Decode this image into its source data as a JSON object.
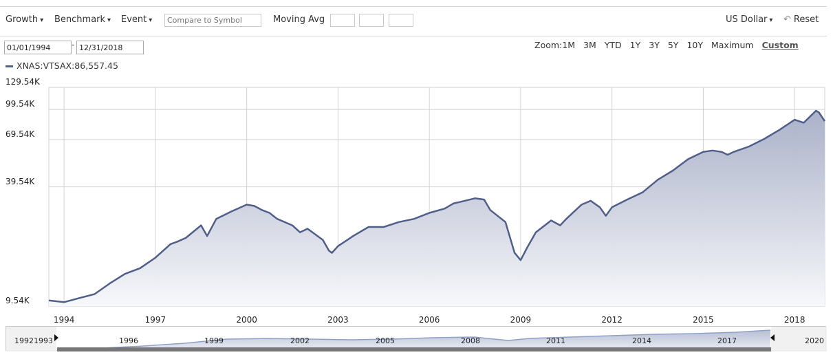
{
  "toolbar": {
    "growth": "Growth",
    "benchmark": "Benchmark",
    "event": "Event",
    "compare_placeholder": "Compare to Symbol",
    "moving_avg": "Moving Avg",
    "currency": "US Dollar",
    "reset": "Reset",
    "caret": "▾",
    "reset_icon": "↶"
  },
  "dates": {
    "start": "01/01/1994",
    "separator": "-",
    "end": "12/31/2018"
  },
  "zoom": {
    "label": "Zoom:",
    "options": [
      "1M",
      "3M",
      "YTD",
      "1Y",
      "3Y",
      "5Y",
      "10Y",
      "Maximum",
      "Custom"
    ],
    "active": "Custom"
  },
  "legend": {
    "series_label": "XNAS:VTSAX:86,557.45"
  },
  "navigator": {
    "left_label": "19921993",
    "right_label": "2020",
    "year_labels": [
      "1996",
      "1999",
      "2002",
      "2005",
      "2008",
      "2011",
      "2014",
      "2017"
    ]
  },
  "colors": {
    "line": "#4f5f8a",
    "grid": "#d2d2d2"
  },
  "chart_data": {
    "type": "area",
    "series": [
      {
        "name": "XNAS:VTSAX",
        "last_value": 86557.45
      }
    ],
    "y_scale": "log",
    "y_ticks": [
      "9.54K",
      "39.54K",
      "69.54K",
      "99.54K",
      "129.54K"
    ],
    "y_tick_values": [
      9540,
      39540,
      69540,
      99540,
      129540
    ],
    "x_ticks": [
      "1994",
      "1997",
      "2000",
      "2003",
      "2006",
      "2009",
      "2012",
      "2015",
      "2018"
    ],
    "x_tick_values": [
      1994,
      1997,
      2000,
      2003,
      2006,
      2009,
      2012,
      2015,
      2018
    ],
    "x_range": [
      1993.5,
      2018.99
    ],
    "y_range": [
      9540,
      129540
    ],
    "x": [
      1993.5,
      1994.0,
      1994.5,
      1995.0,
      1995.5,
      1996.0,
      1996.5,
      1997.0,
      1997.5,
      1997.7,
      1998.0,
      1998.5,
      1998.7,
      1999.0,
      1999.5,
      2000.0,
      2000.25,
      2000.5,
      2000.75,
      2001.0,
      2001.5,
      2001.75,
      2002.0,
      2002.5,
      2002.7,
      2002.8,
      2003.0,
      2003.5,
      2004.0,
      2004.5,
      2005.0,
      2005.5,
      2006.0,
      2006.5,
      2006.8,
      2007.0,
      2007.5,
      2007.8,
      2008.0,
      2008.5,
      2008.8,
      2009.0,
      2009.2,
      2009.5,
      2010.0,
      2010.3,
      2010.5,
      2011.0,
      2011.3,
      2011.6,
      2011.8,
      2012.0,
      2012.5,
      2013.0,
      2013.5,
      2014.0,
      2014.5,
      2015.0,
      2015.3,
      2015.6,
      2015.8,
      2016.0,
      2016.5,
      2017.0,
      2017.5,
      2018.0,
      2018.3,
      2018.7,
      2018.8,
      2018.99
    ],
    "y": [
      10200,
      10000,
      10500,
      11000,
      12500,
      14000,
      15000,
      17000,
      20000,
      20500,
      21500,
      25000,
      22000,
      27000,
      29500,
      32000,
      31500,
      30000,
      29000,
      27000,
      25000,
      23000,
      24000,
      21000,
      18500,
      18000,
      19500,
      22000,
      24500,
      24500,
      26000,
      27000,
      29000,
      30500,
      32500,
      33000,
      34500,
      34000,
      30000,
      26000,
      18000,
      16500,
      19000,
      23000,
      26500,
      25000,
      27000,
      32000,
      33500,
      31000,
      28000,
      31000,
      34000,
      37000,
      43000,
      48000,
      55000,
      60000,
      61000,
      60000,
      58000,
      60000,
      64000,
      70000,
      78000,
      88000,
      85000,
      98000,
      96000,
      86557
    ]
  }
}
